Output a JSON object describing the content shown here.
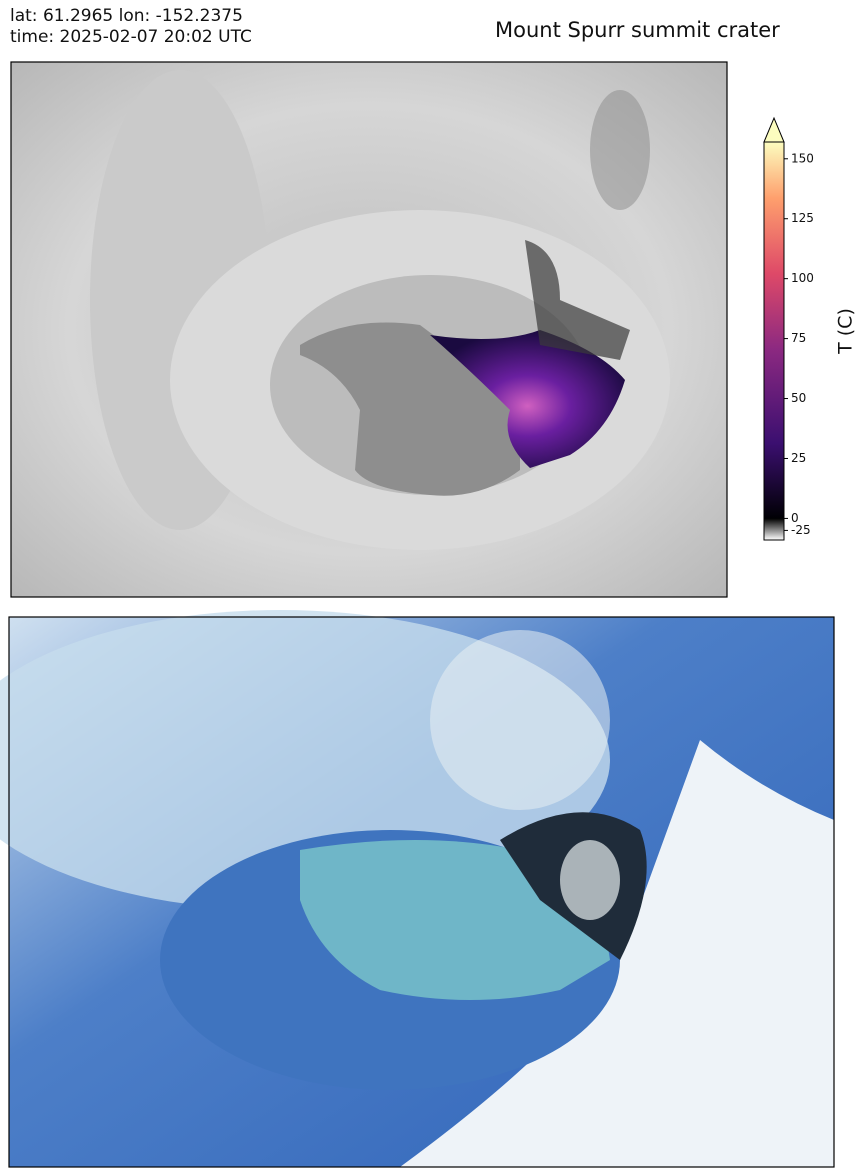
{
  "header": {
    "location": "lat: 61.2965 lon: -152.2375",
    "time": "time: 2025-02-07 20:02 UTC",
    "title": "Mount Spurr summit crater"
  },
  "colorbar": {
    "label": "T (C)",
    "vmin": -45,
    "vcenter": 0,
    "vmax": 157,
    "extend": "max",
    "ticks": [
      150,
      125,
      100,
      75,
      50,
      25,
      0,
      -25
    ]
  }
}
